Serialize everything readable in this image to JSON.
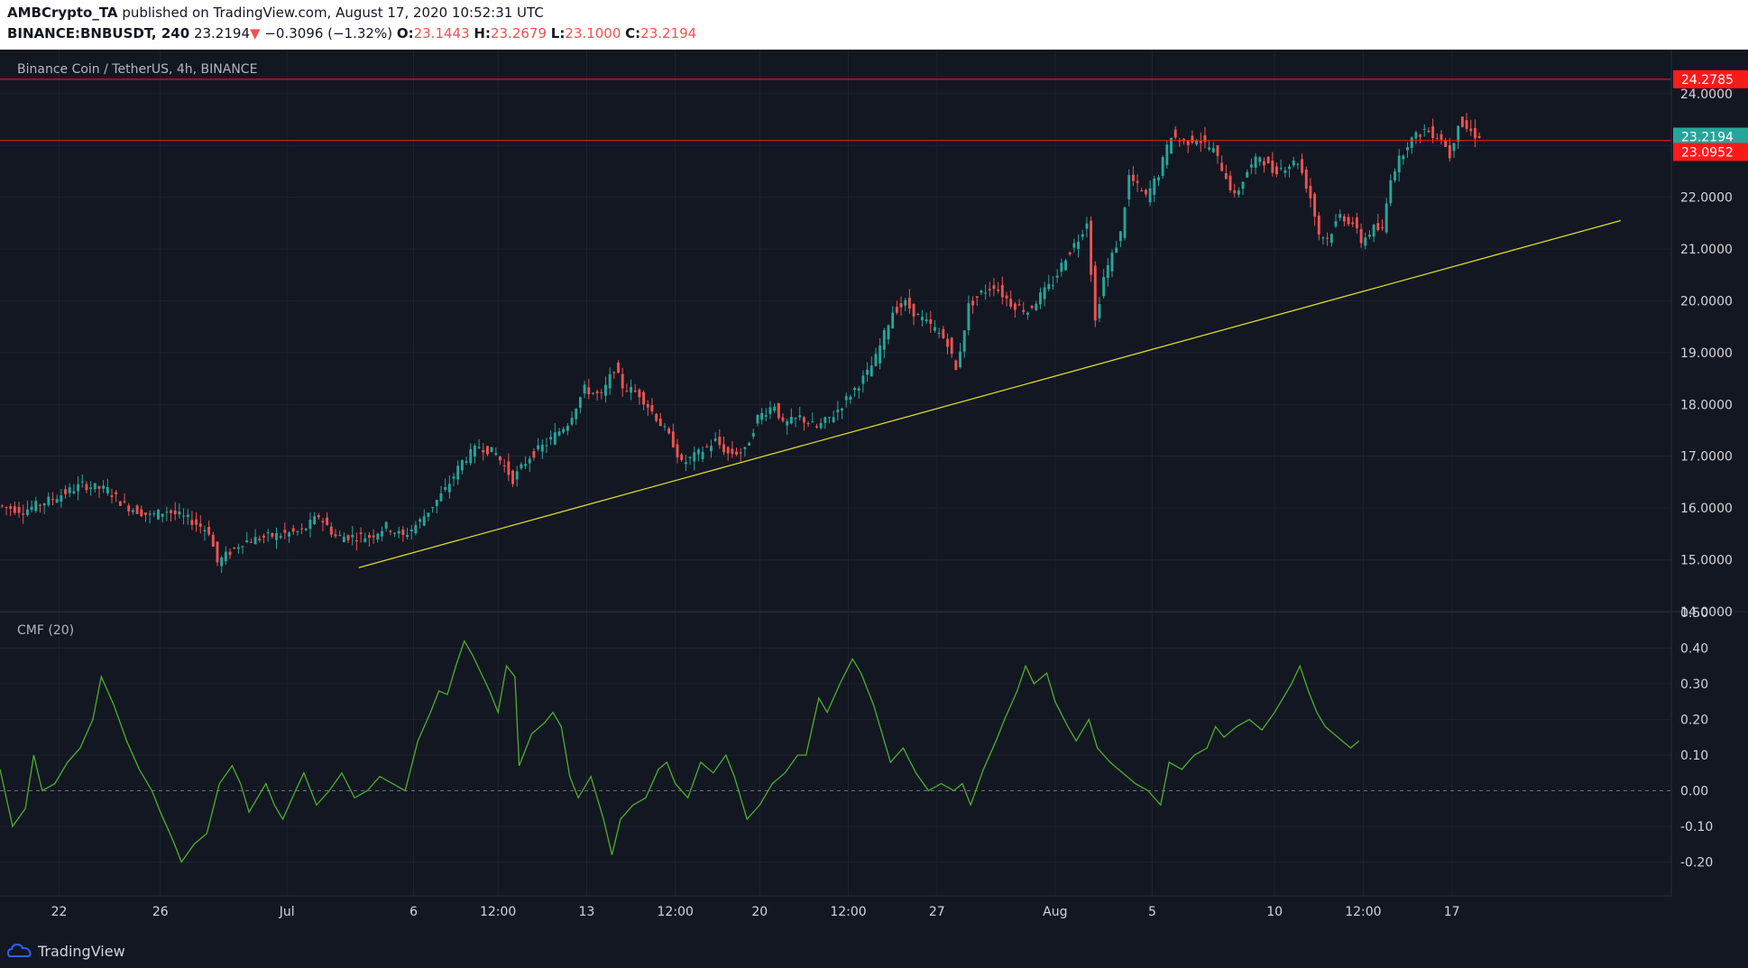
{
  "header": {
    "author": "AMBCrypto_TA",
    "published_text": "published on TradingView.com, August 17, 2020 10:52:31 UTC",
    "symbol": "BINANCE:BNBUSDT, 240",
    "last_price": "23.2194",
    "change_arrow": "▼",
    "change": "−0.3096 (−1.32%)",
    "o_label": "O:",
    "o_value": "23.1443",
    "h_label": "H:",
    "h_value": "23.2679",
    "l_label": "L:",
    "l_value": "23.1000",
    "c_label": "C:",
    "c_value": "23.2194"
  },
  "price_pane": {
    "title": "Binance Coin / TetherUS, 4h, BINANCE",
    "y_ticks": [
      14,
      15,
      16,
      17,
      18,
      19,
      20,
      21,
      22,
      23,
      24
    ],
    "y_range": [
      14,
      24.85
    ],
    "resistance_levels": [
      {
        "value": 24.2785,
        "label": "24.2785"
      },
      {
        "value": 23.0952,
        "label": "23.0952"
      }
    ],
    "current_price": {
      "value": 23.2194,
      "label": "23.2194"
    },
    "trendline": {
      "from": {
        "x": 85.0,
        "y": 14.85
      },
      "to": {
        "x": 384.0,
        "y": 21.55
      }
    }
  },
  "cmf_pane": {
    "title": "CMF (20)",
    "y_ticks": [
      -0.2,
      -0.1,
      0.0,
      0.1,
      0.2,
      0.3,
      0.4,
      0.5
    ],
    "y_range": [
      -0.295,
      0.5
    ],
    "zero_line": 0.0
  },
  "x_axis": {
    "range": [
      0,
      396
    ],
    "ticks": [
      {
        "x": 14,
        "label": "22"
      },
      {
        "x": 38,
        "label": "26"
      },
      {
        "x": 68,
        "label": "Jul"
      },
      {
        "x": 98,
        "label": "6"
      },
      {
        "x": 118,
        "label": "12:00"
      },
      {
        "x": 139,
        "label": "13"
      },
      {
        "x": 160,
        "label": "12:00"
      },
      {
        "x": 180,
        "label": "20"
      },
      {
        "x": 201,
        "label": "12:00"
      },
      {
        "x": 222,
        "label": "27"
      },
      {
        "x": 250,
        "label": "Aug"
      },
      {
        "x": 273,
        "label": "5"
      },
      {
        "x": 302,
        "label": "10"
      },
      {
        "x": 323,
        "label": "12:00"
      },
      {
        "x": 344,
        "label": "17"
      }
    ]
  },
  "colors": {
    "background": "#131722",
    "up": "#26a69a",
    "down": "#ef5350",
    "level_line": "#ff1a1a",
    "trendline": "#d9d92b",
    "cmf_line": "#4caf2a",
    "axis_text": "#d1d4dc",
    "grid": "#1f2330"
  },
  "chart_data": {
    "type": "candlestick",
    "interval": "4h",
    "series": [
      {
        "name": "BNBUSDT",
        "price_anchors": [
          [
            0,
            16.05
          ],
          [
            6,
            15.95
          ],
          [
            12,
            16.15
          ],
          [
            20,
            16.45
          ],
          [
            26,
            16.35
          ],
          [
            30,
            16.05
          ],
          [
            36,
            15.85
          ],
          [
            40,
            15.95
          ],
          [
            46,
            15.75
          ],
          [
            50,
            15.55
          ],
          [
            52,
            14.95
          ],
          [
            58,
            15.35
          ],
          [
            64,
            15.45
          ],
          [
            72,
            15.55
          ],
          [
            76,
            15.85
          ],
          [
            80,
            15.45
          ],
          [
            88,
            15.45
          ],
          [
            92,
            15.65
          ],
          [
            96,
            15.45
          ],
          [
            100,
            15.75
          ],
          [
            106,
            16.35
          ],
          [
            110,
            16.9
          ],
          [
            114,
            17.2
          ],
          [
            118,
            17.05
          ],
          [
            122,
            16.55
          ],
          [
            126,
            17.0
          ],
          [
            130,
            17.25
          ],
          [
            135,
            17.65
          ],
          [
            139,
            18.3
          ],
          [
            143,
            18.15
          ],
          [
            146,
            18.7
          ],
          [
            148,
            18.35
          ],
          [
            152,
            18.2
          ],
          [
            156,
            17.75
          ],
          [
            160,
            17.25
          ],
          [
            162,
            16.85
          ],
          [
            166,
            17.05
          ],
          [
            170,
            17.3
          ],
          [
            173,
            17.05
          ],
          [
            177,
            17.1
          ],
          [
            180,
            17.75
          ],
          [
            184,
            18.0
          ],
          [
            186,
            17.6
          ],
          [
            190,
            17.75
          ],
          [
            194,
            17.55
          ],
          [
            198,
            17.8
          ],
          [
            202,
            18.2
          ],
          [
            206,
            18.6
          ],
          [
            208,
            18.9
          ],
          [
            212,
            19.8
          ],
          [
            215,
            19.95
          ],
          [
            218,
            19.7
          ],
          [
            222,
            19.45
          ],
          [
            225,
            19.2
          ],
          [
            227,
            18.65
          ],
          [
            230,
            19.9
          ],
          [
            233,
            20.15
          ],
          [
            236,
            20.3
          ],
          [
            240,
            19.95
          ],
          [
            244,
            19.8
          ],
          [
            247,
            20.1
          ],
          [
            250,
            20.35
          ],
          [
            253,
            20.85
          ],
          [
            256,
            21.2
          ],
          [
            258,
            21.55
          ],
          [
            260,
            19.6
          ],
          [
            262,
            20.45
          ],
          [
            266,
            21.3
          ],
          [
            268,
            22.4
          ],
          [
            272,
            22.0
          ],
          [
            275,
            22.45
          ],
          [
            278,
            23.2
          ],
          [
            281,
            23.05
          ],
          [
            284,
            23.15
          ],
          [
            288,
            22.9
          ],
          [
            291,
            22.4
          ],
          [
            293,
            22.0
          ],
          [
            296,
            22.5
          ],
          [
            299,
            22.8
          ],
          [
            302,
            22.5
          ],
          [
            305,
            22.6
          ],
          [
            308,
            22.7
          ],
          [
            311,
            22.0
          ],
          [
            313,
            21.3
          ],
          [
            315,
            21.2
          ],
          [
            318,
            21.65
          ],
          [
            321,
            21.5
          ],
          [
            323,
            21.15
          ],
          [
            326,
            21.4
          ],
          [
            328,
            21.35
          ],
          [
            330,
            22.4
          ],
          [
            334,
            23.05
          ],
          [
            338,
            23.3
          ],
          [
            342,
            23.15
          ],
          [
            344,
            22.8
          ],
          [
            346,
            23.45
          ],
          [
            350,
            23.2
          ]
        ]
      }
    ],
    "cmf_series": {
      "name": "CMF (20)",
      "anchors": [
        [
          0,
          0.06
        ],
        [
          3,
          -0.1
        ],
        [
          6,
          -0.05
        ],
        [
          8,
          0.1
        ],
        [
          10,
          0.0
        ],
        [
          13,
          0.02
        ],
        [
          16,
          0.08
        ],
        [
          19,
          0.12
        ],
        [
          22,
          0.2
        ],
        [
          24,
          0.32
        ],
        [
          27,
          0.24
        ],
        [
          30,
          0.14
        ],
        [
          33,
          0.06
        ],
        [
          36,
          0.0
        ],
        [
          38,
          -0.06
        ],
        [
          41,
          -0.14
        ],
        [
          43,
          -0.2
        ],
        [
          46,
          -0.15
        ],
        [
          49,
          -0.12
        ],
        [
          52,
          0.02
        ],
        [
          55,
          0.07
        ],
        [
          57,
          0.02
        ],
        [
          59,
          -0.06
        ],
        [
          61,
          -0.02
        ],
        [
          63,
          0.02
        ],
        [
          65,
          -0.04
        ],
        [
          67,
          -0.08
        ],
        [
          70,
          0.0
        ],
        [
          72,
          0.05
        ],
        [
          75,
          -0.04
        ],
        [
          78,
          0.0
        ],
        [
          81,
          0.05
        ],
        [
          84,
          -0.02
        ],
        [
          87,
          0.0
        ],
        [
          90,
          0.04
        ],
        [
          93,
          0.02
        ],
        [
          96,
          0.0
        ],
        [
          99,
          0.14
        ],
        [
          102,
          0.22
        ],
        [
          104,
          0.28
        ],
        [
          106,
          0.27
        ],
        [
          108,
          0.35
        ],
        [
          110,
          0.42
        ],
        [
          112,
          0.38
        ],
        [
          114,
          0.33
        ],
        [
          116,
          0.28
        ],
        [
          118,
          0.22
        ],
        [
          120,
          0.35
        ],
        [
          122,
          0.32
        ],
        [
          123,
          0.07
        ],
        [
          126,
          0.16
        ],
        [
          129,
          0.19
        ],
        [
          131,
          0.22
        ],
        [
          133,
          0.18
        ],
        [
          135,
          0.04
        ],
        [
          137,
          -0.02
        ],
        [
          140,
          0.04
        ],
        [
          143,
          -0.08
        ],
        [
          145,
          -0.18
        ],
        [
          147,
          -0.08
        ],
        [
          150,
          -0.04
        ],
        [
          153,
          -0.02
        ],
        [
          156,
          0.06
        ],
        [
          158,
          0.08
        ],
        [
          160,
          0.02
        ],
        [
          163,
          -0.02
        ],
        [
          166,
          0.08
        ],
        [
          169,
          0.05
        ],
        [
          172,
          0.1
        ],
        [
          174,
          0.04
        ],
        [
          177,
          -0.08
        ],
        [
          180,
          -0.04
        ],
        [
          183,
          0.02
        ],
        [
          186,
          0.05
        ],
        [
          189,
          0.1
        ],
        [
          191,
          0.1
        ],
        [
          194,
          0.26
        ],
        [
          196,
          0.22
        ],
        [
          199,
          0.3
        ],
        [
          202,
          0.37
        ],
        [
          204,
          0.33
        ],
        [
          207,
          0.24
        ],
        [
          209,
          0.16
        ],
        [
          211,
          0.08
        ],
        [
          214,
          0.12
        ],
        [
          217,
          0.05
        ],
        [
          220,
          0.0
        ],
        [
          223,
          0.02
        ],
        [
          226,
          0.0
        ],
        [
          228,
          0.02
        ],
        [
          230,
          -0.04
        ],
        [
          233,
          0.06
        ],
        [
          236,
          0.14
        ],
        [
          238,
          0.2
        ],
        [
          241,
          0.28
        ],
        [
          243,
          0.35
        ],
        [
          245,
          0.3
        ],
        [
          248,
          0.33
        ],
        [
          250,
          0.25
        ],
        [
          253,
          0.18
        ],
        [
          255,
          0.14
        ],
        [
          258,
          0.2
        ],
        [
          260,
          0.12
        ],
        [
          263,
          0.08
        ],
        [
          266,
          0.05
        ],
        [
          269,
          0.02
        ],
        [
          272,
          0.0
        ],
        [
          275,
          -0.04
        ],
        [
          277,
          0.08
        ],
        [
          280,
          0.06
        ],
        [
          283,
          0.1
        ],
        [
          286,
          0.12
        ],
        [
          288,
          0.18
        ],
        [
          290,
          0.15
        ],
        [
          293,
          0.18
        ],
        [
          296,
          0.2
        ],
        [
          299,
          0.17
        ],
        [
          302,
          0.22
        ],
        [
          304,
          0.26
        ],
        [
          306,
          0.3
        ],
        [
          308,
          0.35
        ],
        [
          310,
          0.28
        ],
        [
          312,
          0.22
        ],
        [
          314,
          0.18
        ],
        [
          317,
          0.15
        ],
        [
          320,
          0.12
        ],
        [
          322,
          0.14
        ]
      ]
    },
    "resistance_levels": [
      24.2785,
      23.0952
    ],
    "trendline": {
      "from": {
        "x": 85.0,
        "y": 14.85
      },
      "to": {
        "x": 384.0,
        "y": 21.55
      }
    },
    "xlabel": "",
    "ylabel": "",
    "grid": true
  },
  "footer": {
    "brand": "TradingView"
  }
}
